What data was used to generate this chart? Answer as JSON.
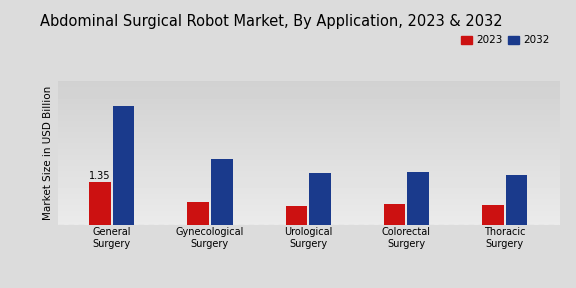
{
  "title": "Abdominal Surgical Robot Market, By Application, 2023 & 2032",
  "ylabel": "Market Size in USD Billion",
  "categories": [
    "General\nSurgery",
    "Gynecological\nSurgery",
    "Urological\nSurgery",
    "Colorectal\nSurgery",
    "Thoracic\nSurgery"
  ],
  "values_2023": [
    1.35,
    0.72,
    0.6,
    0.65,
    0.62
  ],
  "values_2032": [
    3.8,
    2.1,
    1.65,
    1.68,
    1.58
  ],
  "color_2023": "#cc1111",
  "color_2032": "#1a3a8c",
  "annotation_text": "1.35",
  "annotation_bar": 0,
  "legend_labels": [
    "2023",
    "2032"
  ],
  "bg_top": "#d8d8d8",
  "bg_bottom": "#e8e8e8",
  "bar_width": 0.22,
  "ylim": [
    0,
    4.6
  ],
  "title_fontsize": 10.5,
  "label_fontsize": 7.5,
  "tick_fontsize": 7.0,
  "legend_fontsize": 7.5
}
